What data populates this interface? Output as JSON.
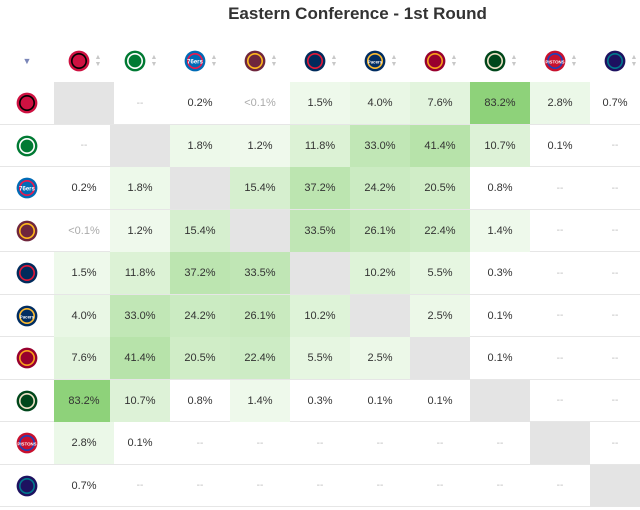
{
  "title": "Eastern Conference - 1st Round",
  "teams": [
    {
      "key": "raptors",
      "abbr": "",
      "color": "#ce1141",
      "accent": "#000000"
    },
    {
      "key": "celtics",
      "abbr": "",
      "color": "#007a33",
      "accent": "#ffffff"
    },
    {
      "key": "76ers",
      "abbr": "76ers",
      "color": "#006bb6",
      "accent": "#ed174c"
    },
    {
      "key": "cavaliers",
      "abbr": "",
      "color": "#6f263d",
      "accent": "#ffb81c"
    },
    {
      "key": "wizards",
      "abbr": "",
      "color": "#002b5c",
      "accent": "#e31837"
    },
    {
      "key": "pacers",
      "abbr": "Pacers",
      "color": "#002d62",
      "accent": "#fdbb30"
    },
    {
      "key": "heat",
      "abbr": "",
      "color": "#98002e",
      "accent": "#f9a01b"
    },
    {
      "key": "bucks",
      "abbr": "",
      "color": "#00471b",
      "accent": "#eee1c6"
    },
    {
      "key": "pistons",
      "abbr": "PISTONS",
      "color": "#c8102e",
      "accent": "#1d42ba"
    },
    {
      "key": "hornets",
      "abbr": "",
      "color": "#1d1160",
      "accent": "#00788c"
    }
  ],
  "matrix": [
    [
      "",
      "--",
      "0.2%",
      "<0.1%",
      "1.5%",
      "4.0%",
      "7.6%",
      "83.2%",
      "2.8%",
      "0.7%"
    ],
    [
      "--",
      "",
      "1.8%",
      "1.2%",
      "11.8%",
      "33.0%",
      "41.4%",
      "10.7%",
      "0.1%",
      "--"
    ],
    [
      "0.2%",
      "1.8%",
      "",
      "15.4%",
      "37.2%",
      "24.2%",
      "20.5%",
      "0.8%",
      "--",
      "--"
    ],
    [
      "<0.1%",
      "1.2%",
      "15.4%",
      "",
      "33.5%",
      "26.1%",
      "22.4%",
      "1.4%",
      "--",
      "--"
    ],
    [
      "1.5%",
      "11.8%",
      "37.2%",
      "33.5%",
      "",
      "10.2%",
      "5.5%",
      "0.3%",
      "--",
      "--"
    ],
    [
      "4.0%",
      "33.0%",
      "24.2%",
      "26.1%",
      "10.2%",
      "",
      "2.5%",
      "0.1%",
      "--",
      "--"
    ],
    [
      "7.6%",
      "41.4%",
      "20.5%",
      "22.4%",
      "5.5%",
      "2.5%",
      "",
      "0.1%",
      "--",
      "--"
    ],
    [
      "83.2%",
      "10.7%",
      "0.8%",
      "1.4%",
      "0.3%",
      "0.1%",
      "0.1%",
      "",
      "--",
      "--"
    ],
    [
      "2.8%",
      "0.1%",
      "--",
      "--",
      "--",
      "--",
      "--",
      "--",
      "",
      "--"
    ],
    [
      "0.7%",
      "--",
      "--",
      "--",
      "--",
      "--",
      "--",
      "--",
      "--",
      ""
    ]
  ],
  "colors": {
    "cell_low": "#f3fbf1",
    "cell_high": "#8ed27a",
    "self": "#e4e4e4",
    "sort_active": "#7a86b8"
  }
}
